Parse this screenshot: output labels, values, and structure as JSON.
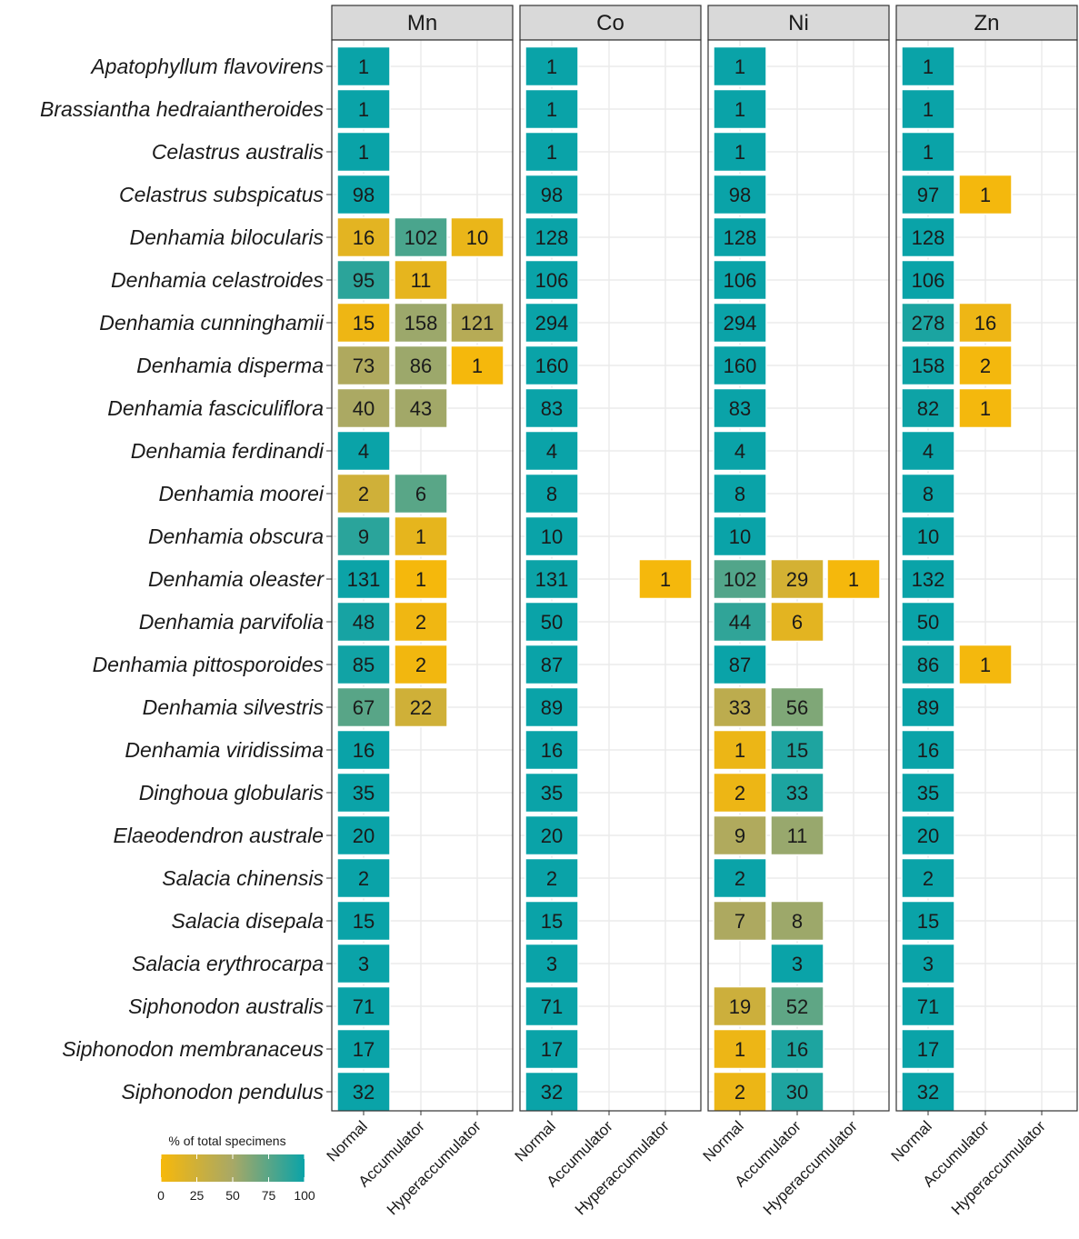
{
  "chart_data": {
    "type": "heatmap",
    "facets": [
      "Mn",
      "Co",
      "Ni",
      "Zn"
    ],
    "categories": [
      "Normal",
      "Accumulator",
      "Hyperaccumulator"
    ],
    "species": [
      "Apatophyllum flavovirens",
      "Brassiantha hedraiantheroides",
      "Celastrus australis",
      "Celastrus subspicatus",
      "Denhamia bilocularis",
      "Denhamia celastroides",
      "Denhamia cunninghamii",
      "Denhamia disperma",
      "Denhamia fasciculiflora",
      "Denhamia ferdinandi",
      "Denhamia moorei",
      "Denhamia obscura",
      "Denhamia oleaster",
      "Denhamia parvifolia",
      "Denhamia pittosporoides",
      "Denhamia silvestris",
      "Denhamia viridissima",
      "Dinghoua globularis",
      "Elaeodendron australe",
      "Salacia chinensis",
      "Salacia disepala",
      "Salacia erythrocarpa",
      "Siphonodon australis",
      "Siphonodon membranaceus",
      "Siphonodon pendulus"
    ],
    "counts": {
      "Mn": [
        [
          1,
          null,
          null
        ],
        [
          1,
          null,
          null
        ],
        [
          1,
          null,
          null
        ],
        [
          98,
          null,
          null
        ],
        [
          16,
          102,
          10
        ],
        [
          95,
          11,
          null
        ],
        [
          15,
          158,
          121
        ],
        [
          73,
          86,
          1
        ],
        [
          40,
          43,
          null
        ],
        [
          4,
          null,
          null
        ],
        [
          2,
          6,
          null
        ],
        [
          9,
          1,
          null
        ],
        [
          131,
          1,
          null
        ],
        [
          48,
          2,
          null
        ],
        [
          85,
          2,
          null
        ],
        [
          67,
          22,
          null
        ],
        [
          16,
          null,
          null
        ],
        [
          35,
          null,
          null
        ],
        [
          20,
          null,
          null
        ],
        [
          2,
          null,
          null
        ],
        [
          15,
          null,
          null
        ],
        [
          3,
          null,
          null
        ],
        [
          71,
          null,
          null
        ],
        [
          17,
          null,
          null
        ],
        [
          32,
          null,
          null
        ]
      ],
      "Co": [
        [
          1,
          null,
          null
        ],
        [
          1,
          null,
          null
        ],
        [
          1,
          null,
          null
        ],
        [
          98,
          null,
          null
        ],
        [
          128,
          null,
          null
        ],
        [
          106,
          null,
          null
        ],
        [
          294,
          null,
          null
        ],
        [
          160,
          null,
          null
        ],
        [
          83,
          null,
          null
        ],
        [
          4,
          null,
          null
        ],
        [
          8,
          null,
          null
        ],
        [
          10,
          null,
          null
        ],
        [
          131,
          null,
          1
        ],
        [
          50,
          null,
          null
        ],
        [
          87,
          null,
          null
        ],
        [
          89,
          null,
          null
        ],
        [
          16,
          null,
          null
        ],
        [
          35,
          null,
          null
        ],
        [
          20,
          null,
          null
        ],
        [
          2,
          null,
          null
        ],
        [
          15,
          null,
          null
        ],
        [
          3,
          null,
          null
        ],
        [
          71,
          null,
          null
        ],
        [
          17,
          null,
          null
        ],
        [
          32,
          null,
          null
        ]
      ],
      "Ni": [
        [
          1,
          null,
          null
        ],
        [
          1,
          null,
          null
        ],
        [
          1,
          null,
          null
        ],
        [
          98,
          null,
          null
        ],
        [
          128,
          null,
          null
        ],
        [
          106,
          null,
          null
        ],
        [
          294,
          null,
          null
        ],
        [
          160,
          null,
          null
        ],
        [
          83,
          null,
          null
        ],
        [
          4,
          null,
          null
        ],
        [
          8,
          null,
          null
        ],
        [
          10,
          null,
          null
        ],
        [
          102,
          29,
          1
        ],
        [
          44,
          6,
          null
        ],
        [
          87,
          null,
          null
        ],
        [
          33,
          56,
          null
        ],
        [
          1,
          15,
          null
        ],
        [
          2,
          33,
          null
        ],
        [
          9,
          11,
          null
        ],
        [
          2,
          null,
          null
        ],
        [
          7,
          8,
          null
        ],
        [
          null,
          3,
          null
        ],
        [
          19,
          52,
          null
        ],
        [
          1,
          16,
          null
        ],
        [
          2,
          30,
          null
        ]
      ],
      "Zn": [
        [
          1,
          null,
          null
        ],
        [
          1,
          null,
          null
        ],
        [
          1,
          null,
          null
        ],
        [
          97,
          1,
          null
        ],
        [
          128,
          null,
          null
        ],
        [
          106,
          null,
          null
        ],
        [
          278,
          16,
          null
        ],
        [
          158,
          2,
          null
        ],
        [
          82,
          1,
          null
        ],
        [
          4,
          null,
          null
        ],
        [
          8,
          null,
          null
        ],
        [
          10,
          null,
          null
        ],
        [
          132,
          null,
          null
        ],
        [
          50,
          null,
          null
        ],
        [
          86,
          1,
          null
        ],
        [
          89,
          null,
          null
        ],
        [
          16,
          null,
          null
        ],
        [
          35,
          null,
          null
        ],
        [
          20,
          null,
          null
        ],
        [
          2,
          null,
          null
        ],
        [
          15,
          null,
          null
        ],
        [
          3,
          null,
          null
        ],
        [
          71,
          null,
          null
        ],
        [
          17,
          null,
          null
        ],
        [
          32,
          null,
          null
        ]
      ]
    },
    "fill_variable": "% of total specimens",
    "legend": {
      "title": "% of total specimens",
      "ticks": [
        0,
        25,
        50,
        75,
        100
      ],
      "range": [
        0,
        100
      ],
      "low_color": "#f6b80b",
      "high_color": "#0aa3a8",
      "position": "bottom-left"
    },
    "xlabel": "",
    "ylabel": ""
  },
  "colors": {
    "strip_fill": "#d9d9d9",
    "panel_border": "#333333",
    "grid": "#ebebeb",
    "tile_border": "#ffffff"
  }
}
